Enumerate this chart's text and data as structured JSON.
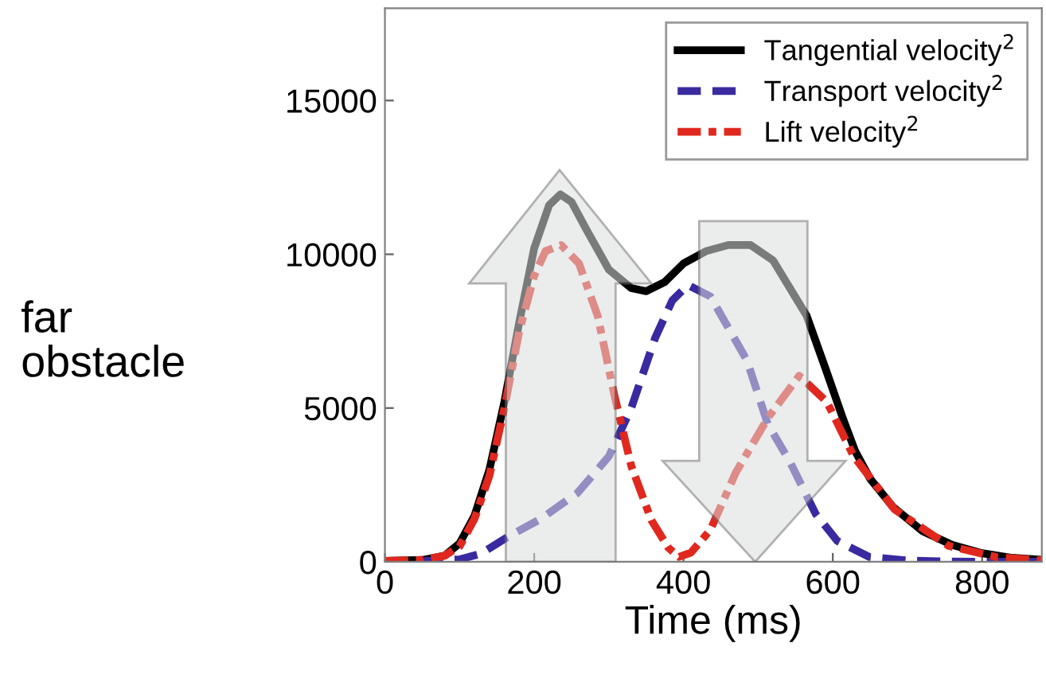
{
  "chart_data": {
    "type": "line",
    "xlabel": "Time (ms)",
    "annotations": [
      "far\nobstacle"
    ],
    "xlim": [
      0,
      880
    ],
    "ylim": [
      0,
      18000
    ],
    "xticks": [
      0,
      200,
      400,
      600,
      800
    ],
    "yticks": [
      0,
      5000,
      10000,
      15000
    ],
    "grid": false,
    "legend": "top right",
    "marker": "none",
    "series": [
      {
        "name": "Tangential velocity$^{2}$",
        "color": "#000000",
        "line_style": "solid",
        "x": [
          0,
          50,
          80,
          100,
          120,
          140,
          160,
          180,
          200,
          220,
          235,
          250,
          270,
          300,
          330,
          350,
          375,
          400,
          430,
          460,
          490,
          520,
          545,
          565,
          590,
          613,
          630,
          650,
          680,
          720,
          760,
          800,
          840,
          880
        ],
        "values": [
          30,
          60,
          200,
          600,
          1500,
          3000,
          5200,
          7800,
          10200,
          11600,
          11950,
          11700,
          10800,
          9500,
          8900,
          8800,
          9100,
          9700,
          10100,
          10300,
          10300,
          9800,
          8800,
          8000,
          6300,
          4700,
          3600,
          2700,
          1800,
          1000,
          550,
          280,
          130,
          70
        ]
      },
      {
        "name": "Transport velocity$^{2}$",
        "color": "#3a2aa0",
        "line_style": "dashed",
        "x": [
          0,
          50,
          100,
          128,
          166,
          209,
          258,
          300,
          330,
          362,
          385,
          406,
          436,
          485,
          513,
          542,
          577,
          606,
          649,
          700,
          760,
          820,
          880
        ],
        "values": [
          0,
          20,
          80,
          260,
          830,
          1400,
          2240,
          3430,
          5000,
          7280,
          8500,
          9000,
          8630,
          6550,
          4470,
          3280,
          1560,
          680,
          160,
          40,
          10,
          0,
          0
        ]
      },
      {
        "name": "Lift velocity$^{2}$",
        "color": "#e0281e",
        "line_style": "dashdot",
        "x": [
          0,
          50,
          80,
          100,
          120,
          140,
          160,
          180,
          200,
          215,
          236,
          260,
          285,
          308,
          330,
          357,
          380,
          394,
          410,
          436,
          470,
          513,
          555,
          592,
          628,
          683,
          755,
          820,
          880
        ],
        "values": [
          30,
          60,
          200,
          500,
          1400,
          2800,
          5000,
          7500,
          9300,
          10100,
          10300,
          9700,
          8000,
          5350,
          3120,
          1350,
          450,
          160,
          300,
          1040,
          2900,
          4680,
          6050,
          5200,
          3430,
          1700,
          520,
          150,
          50
        ]
      }
    ]
  }
}
